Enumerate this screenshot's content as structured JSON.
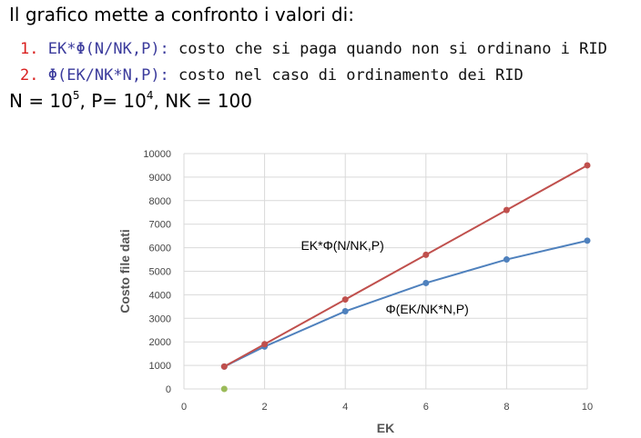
{
  "intro": "Il grafico mette a confronto i valori di:",
  "items": [
    {
      "num": "1.",
      "expr": "EK*Φ(N/NK,P):",
      "desc": "costo che si paga quando non si ordinano i RID"
    },
    {
      "num": "2.",
      "expr": "Φ(EK/NK*N,P):",
      "desc": "costo nel caso di ordinamento dei RID"
    }
  ],
  "params": {
    "n_prefix": "N = 10",
    "n_exp": "5",
    "p_prefix": ", P= 10",
    "p_exp": "4",
    "nk": ", NK = 100"
  },
  "colors": {
    "series1": "#c0504d",
    "series2": "#4f81bd",
    "extra_point": "#9bbb59",
    "grid": "#d9d9d9"
  },
  "chart_data": {
    "type": "line",
    "xlabel": "EK",
    "ylabel": "Costo file dati",
    "xlim": [
      0,
      10
    ],
    "ylim": [
      0,
      10000
    ],
    "x_ticks": [
      "0",
      "2",
      "4",
      "6",
      "8",
      "10"
    ],
    "y_ticks": [
      "0",
      "1000",
      "2000",
      "3000",
      "4000",
      "5000",
      "6000",
      "7000",
      "8000",
      "9000",
      "10000"
    ],
    "grid": true,
    "series": [
      {
        "x": [
          1,
          2,
          4,
          6,
          8,
          10
        ],
        "y": [
          950,
          1900,
          3800,
          5700,
          7600,
          9500
        ]
      },
      {
        "x": [
          1,
          2,
          4,
          6,
          8,
          10
        ],
        "y": [
          950,
          1800,
          3300,
          4500,
          5500,
          6300
        ]
      }
    ],
    "extra_points": [
      {
        "x": 1,
        "y": 0
      }
    ],
    "annotations": [
      {
        "text": "EK*Φ(N/NK,P)",
        "x": 2.9,
        "y": 5900
      },
      {
        "text": "Φ(EK/NK*N,P)",
        "x": 5.0,
        "y": 3200
      }
    ]
  }
}
